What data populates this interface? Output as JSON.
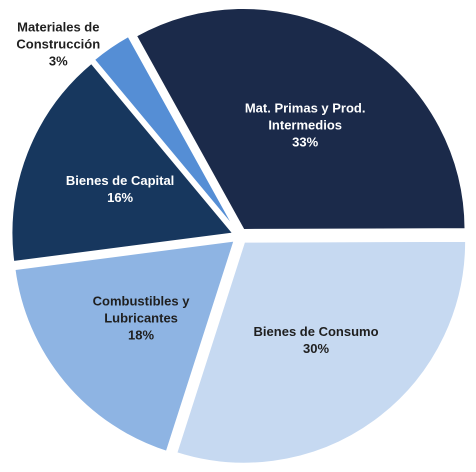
{
  "chart_data": {
    "type": "pie",
    "categories": [
      "Mat. Primas y Prod. Intermedios",
      "Bienes de Consumo",
      "Combustibles y Lubricantes",
      "Bienes de Capital",
      "Materiales de Construcción"
    ],
    "values": [
      33,
      30,
      18,
      16,
      3
    ],
    "value_labels": [
      "33%",
      "30%",
      "18%",
      "16%",
      "3%"
    ],
    "colors": [
      "#1b2a4a",
      "#c6d9f1",
      "#8eb4e3",
      "#17375e",
      "#558ed5"
    ]
  }
}
